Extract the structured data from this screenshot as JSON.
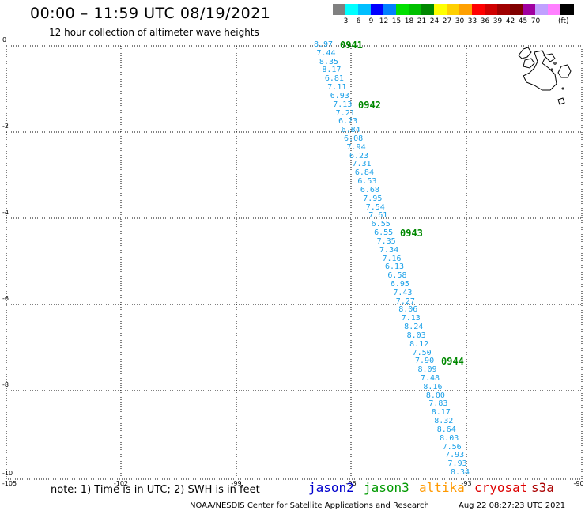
{
  "header": {
    "title": "00:00 – 11:59 UTC 08/19/2021",
    "subtitle": "12 hour collection of altimeter wave heights"
  },
  "legend": {
    "unit": "(ft)",
    "colors": [
      "#808080",
      "#00ffff",
      "#00bfff",
      "#0000ff",
      "#0080ff",
      "#00e000",
      "#00c000",
      "#008800",
      "#ffff00",
      "#ffd000",
      "#ffa000",
      "#ff0000",
      "#d00000",
      "#a00000",
      "#800000",
      "#a000a0",
      "#c0a0ff",
      "#ff80ff",
      "#000000"
    ],
    "labels": [
      "3",
      "6",
      "9",
      "12",
      "15",
      "18",
      "21",
      "24",
      "27",
      "30",
      "33",
      "36",
      "39",
      "42",
      "45",
      "70"
    ]
  },
  "axes": {
    "y_labels": [
      "0",
      "-2",
      "-4",
      "-6",
      "-8",
      "-10"
    ],
    "x_labels": [
      "-105",
      "-102",
      "-99",
      "-96",
      "-93",
      "-90"
    ]
  },
  "track": {
    "color": "#1aa0e8",
    "values": [
      "8.97",
      "7.44",
      "8.35",
      "8.17",
      "6.81",
      "7.11",
      "6.93",
      "7.13",
      "7.21",
      "6.23",
      "6.84",
      "6.08",
      "7.94",
      "6.23",
      "7.31",
      "6.84",
      "6.53",
      "6.68",
      "7.95",
      "7.54",
      "7.61",
      "6.55",
      "6.55",
      "7.35",
      "7.34",
      "7.16",
      "6.13",
      "6.58",
      "6.95",
      "7.43",
      "7.27",
      "8.06",
      "7.13",
      "8.24",
      "8.03",
      "8.12",
      "7.50",
      "7.90",
      "8.09",
      "7.48",
      "8.16",
      "8.00",
      "7.83",
      "8.17",
      "8.32",
      "8.64",
      "8.03",
      "7.56",
      "7.93",
      "7.93",
      "8.34"
    ],
    "time_labels": [
      "0941",
      "0942",
      "0943",
      "0944"
    ]
  },
  "footer": {
    "note": "note: 1) Time is in UTC; 2) SWH is in feet",
    "satellites": [
      {
        "name": "jason2",
        "color": "#0000cc"
      },
      {
        "name": "jason3",
        "color": "#009900"
      },
      {
        "name": "altika",
        "color": "#ff9900"
      },
      {
        "name": "cryosat",
        "color": "#dd0000"
      },
      {
        "name": "s3a",
        "color": "#aa0000"
      }
    ],
    "credit": "NOAA/NESDIS Center for Satellite Applications and Research",
    "timestamp": "Aug 22 08:27:23 UTC 2021"
  }
}
